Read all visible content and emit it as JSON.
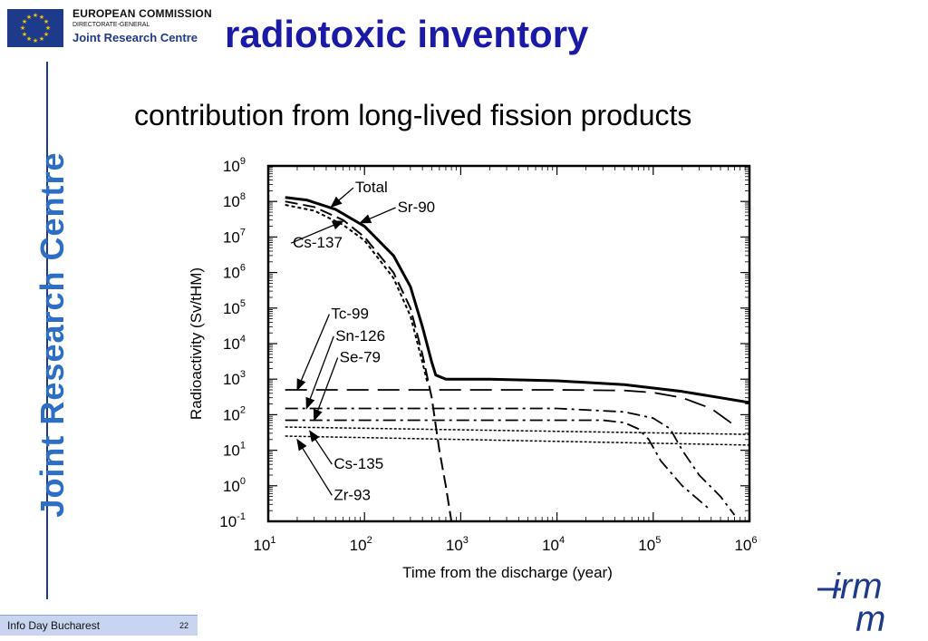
{
  "header": {
    "org_line1": "EUROPEAN COMMISSION",
    "org_line2": "DIRECTORATE-GENERAL",
    "org_line3": "Joint Research Centre"
  },
  "title": "radiotoxic inventory",
  "subtitle": "contribution from long-lived fission products",
  "sidebar": {
    "vertical_text": "Joint Research Centre"
  },
  "footer": {
    "text": "Info Day Bucharest",
    "page": "22"
  },
  "logo_irmm": {
    "line1": "irm",
    "line2": "m"
  },
  "colors": {
    "title": "#1a1aa6",
    "vertical_text": "#2d6fc6",
    "footer_bg": "#c9d5f0",
    "eu_blue": "#1e3a8a"
  },
  "chart_data": {
    "type": "line",
    "xlabel": "Time from the discharge (year)",
    "ylabel": "Radioactivity (Sv/tHM)",
    "x_scale": "log",
    "y_scale": "log",
    "xlim": [
      10,
      1000000
    ],
    "ylim": [
      0.1,
      1000000000
    ],
    "x_ticks": [
      {
        "base": "10",
        "exp": "1"
      },
      {
        "base": "10",
        "exp": "2"
      },
      {
        "base": "10",
        "exp": "3"
      },
      {
        "base": "10",
        "exp": "4"
      },
      {
        "base": "10",
        "exp": "5"
      },
      {
        "base": "10",
        "exp": "6"
      }
    ],
    "y_ticks": [
      {
        "base": "10",
        "exp": "-1"
      },
      {
        "base": "10",
        "exp": "0"
      },
      {
        "base": "10",
        "exp": "1"
      },
      {
        "base": "10",
        "exp": "2"
      },
      {
        "base": "10",
        "exp": "3"
      },
      {
        "base": "10",
        "exp": "4"
      },
      {
        "base": "10",
        "exp": "5"
      },
      {
        "base": "10",
        "exp": "6"
      },
      {
        "base": "10",
        "exp": "7"
      },
      {
        "base": "10",
        "exp": "8"
      },
      {
        "base": "10",
        "exp": "9"
      }
    ],
    "series": [
      {
        "name": "Total",
        "style": "solid",
        "width": 3,
        "points": [
          [
            15,
            130000000
          ],
          [
            25,
            110000000
          ],
          [
            50,
            60000000
          ],
          [
            100,
            20000000
          ],
          [
            200,
            3000000
          ],
          [
            300,
            400000
          ],
          [
            400,
            30000
          ],
          [
            500,
            3000
          ],
          [
            550,
            1300
          ],
          [
            700,
            1000
          ],
          [
            2000,
            1000
          ],
          [
            10000,
            900
          ],
          [
            50000,
            700
          ],
          [
            200000,
            450
          ],
          [
            500000,
            300
          ],
          [
            1000000,
            220
          ]
        ]
      },
      {
        "name": "Sr-90",
        "style": "dash",
        "width": 2,
        "points": [
          [
            15,
            100000000
          ],
          [
            30,
            70000000
          ],
          [
            60,
            30000000
          ],
          [
            100,
            10000000
          ],
          [
            200,
            1000000
          ],
          [
            300,
            100000
          ],
          [
            400,
            5000
          ],
          [
            500,
            300
          ],
          [
            600,
            10
          ],
          [
            700,
            1
          ],
          [
            800,
            0.1
          ]
        ]
      },
      {
        "name": "Cs-137",
        "style": "dot",
        "width": 2,
        "points": [
          [
            15,
            80000000
          ],
          [
            30,
            55000000
          ],
          [
            60,
            22000000
          ],
          [
            100,
            8000000
          ],
          [
            200,
            700000
          ],
          [
            300,
            60000
          ],
          [
            400,
            3000
          ],
          [
            450,
            800
          ]
        ]
      },
      {
        "name": "Tc-99",
        "style": "longdash",
        "width": 1.8,
        "points": [
          [
            15,
            500
          ],
          [
            1000,
            500
          ],
          [
            10000,
            500
          ],
          [
            50000,
            480
          ],
          [
            100000,
            420
          ],
          [
            200000,
            300
          ],
          [
            400000,
            150
          ],
          [
            700000,
            50
          ]
        ]
      },
      {
        "name": "Sn-126",
        "style": "dashdot",
        "width": 1.8,
        "points": [
          [
            15,
            150
          ],
          [
            10000,
            150
          ],
          [
            50000,
            120
          ],
          [
            100000,
            80
          ],
          [
            150000,
            40
          ],
          [
            200000,
            10
          ],
          [
            300000,
            2
          ],
          [
            500000,
            0.5
          ],
          [
            700000,
            0.15
          ]
        ]
      },
      {
        "name": "Se-79",
        "style": "dashdot",
        "width": 1.8,
        "points": [
          [
            15,
            70
          ],
          [
            30000,
            70
          ],
          [
            50000,
            60
          ],
          [
            70000,
            40
          ],
          [
            90000,
            20
          ],
          [
            120000,
            5
          ],
          [
            200000,
            1
          ],
          [
            400000,
            0.2
          ]
        ]
      },
      {
        "name": "Cs-135",
        "style": "dense",
        "width": 1.5,
        "points": [
          [
            15,
            45
          ],
          [
            1000000,
            28
          ]
        ]
      },
      {
        "name": "Zr-93",
        "style": "dense",
        "width": 1.5,
        "points": [
          [
            15,
            25
          ],
          [
            1000000,
            14
          ]
        ]
      }
    ],
    "annotations": [
      {
        "label": "Total",
        "text_at": [
          80,
          180000000
        ],
        "arrow_to": [
          45,
          70000000
        ]
      },
      {
        "label": "Sr-90",
        "text_at": [
          220,
          50000000
        ],
        "arrow_to": [
          90,
          25000000
        ]
      },
      {
        "label": "Cs-137",
        "text_at": [
          18,
          5000000
        ],
        "arrow_to": [
          60,
          28000000
        ]
      },
      {
        "label": "Tc-99",
        "text_at": [
          45,
          50000
        ],
        "arrow_to": [
          20,
          500
        ]
      },
      {
        "label": "Sn-126",
        "text_at": [
          50,
          12000
        ],
        "arrow_to": [
          25,
          150
        ]
      },
      {
        "label": "Se-79",
        "text_at": [
          55,
          3000
        ],
        "arrow_to": [
          30,
          70
        ]
      },
      {
        "label": "Cs-135",
        "text_at": [
          48,
          3
        ],
        "arrow_to": [
          27,
          35
        ]
      },
      {
        "label": "Zr-93",
        "text_at": [
          48,
          0.4
        ],
        "arrow_to": [
          20,
          20
        ]
      }
    ]
  }
}
